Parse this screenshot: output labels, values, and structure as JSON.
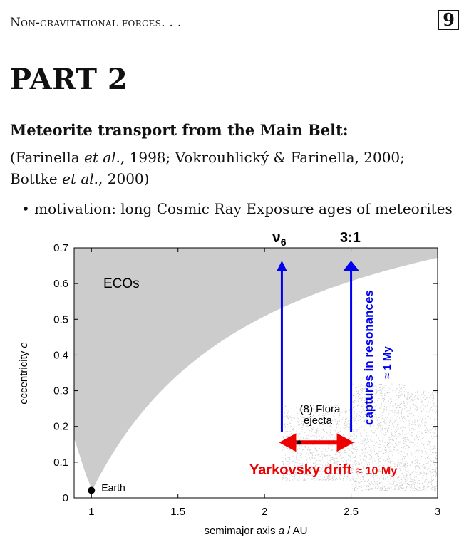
{
  "header": {
    "running_title": "Non-gravitational forces. . .",
    "page_number": "9"
  },
  "part_title": "PART 2",
  "section": {
    "heading": "Meteorite transport from the Main Belt:",
    "citation_parts": [
      "(Farinella ",
      "et al.",
      ", 1998; Vokrouhlický & Farinella, 2000; ",
      "Bottke ",
      "et al.",
      ", 2000)"
    ],
    "bullet": "motivation: long Cosmic Ray Exposure ages of meteorites"
  },
  "chart_data": {
    "type": "scatter",
    "xlabel_parts": [
      "semimajor axis ",
      "a",
      " / AU"
    ],
    "ylabel_parts": [
      "eccentricity ",
      "e"
    ],
    "xlim": [
      0.9,
      3.0
    ],
    "ylim": [
      0,
      0.7
    ],
    "xticks": [
      "1",
      "1.5",
      "2",
      "2.5",
      "3"
    ],
    "xtick_values": [
      1,
      1.5,
      2,
      2.5,
      3
    ],
    "yticks": [
      "0",
      "0.1",
      "0.2",
      "0.3",
      "0.4",
      "0.5",
      "0.6",
      "0.7"
    ],
    "ytick_values": [
      0,
      0.1,
      0.2,
      0.3,
      0.4,
      0.5,
      0.6,
      0.7
    ],
    "region_label": "ECOs",
    "resonances": [
      {
        "label": "ν",
        "subscript": "6",
        "a": 2.1,
        "e_top": 0.66
      },
      {
        "label": "3:1",
        "subscript": "",
        "a": 2.5,
        "e_top": 0.66
      }
    ],
    "earth": {
      "label": "Earth",
      "a": 1.0,
      "e": 0.017
    },
    "flora": {
      "label_line1": "(8) Flora",
      "label_line2": "ejecta",
      "a": 2.2,
      "e": 0.155
    },
    "yarkovsky_label": "Yarkovsky drift",
    "yarkovsky_time": "≈ 10 My",
    "captures_label": "captures in resonances",
    "captures_time": "≈ 1 My",
    "colors": {
      "ecos_region": "#cccccc",
      "asteroids": "#c8c8c8",
      "capture_arrows": "#0000ee",
      "yarkovsky_arrow": "#ee0000"
    }
  }
}
